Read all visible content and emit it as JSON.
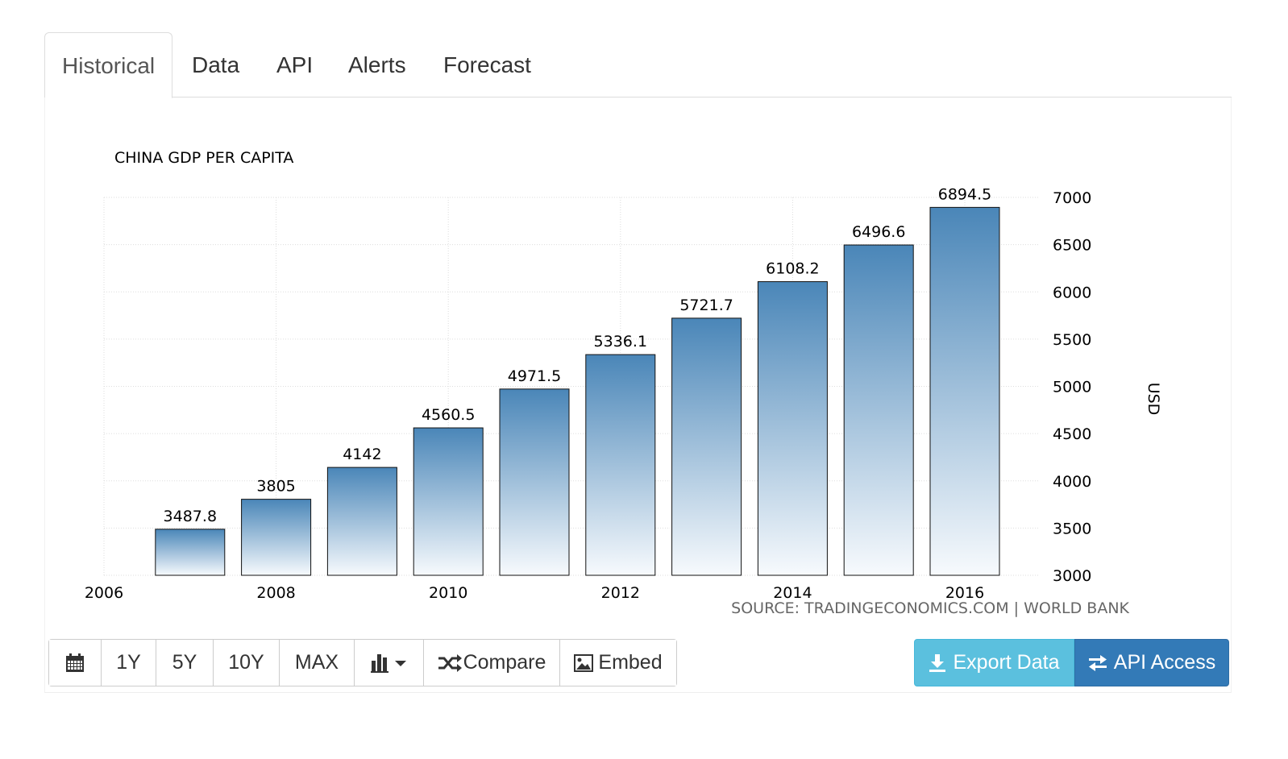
{
  "tabs": [
    {
      "label": "Historical",
      "active": true
    },
    {
      "label": "Data",
      "active": false
    },
    {
      "label": "API",
      "active": false
    },
    {
      "label": "Alerts",
      "active": false
    },
    {
      "label": "Forecast",
      "active": false
    }
  ],
  "chart_data": {
    "type": "bar",
    "title": "CHINA GDP PER CAPITA",
    "ylabel": "USD",
    "xlabel": "",
    "x": [
      2007,
      2008,
      2009,
      2010,
      2011,
      2012,
      2013,
      2014,
      2015,
      2016
    ],
    "values": [
      3487.8,
      3805,
      4142,
      4560.5,
      4971.5,
      5336.1,
      5721.7,
      6108.2,
      6496.6,
      6894.5
    ],
    "value_labels": [
      "3487.8",
      "3805",
      "4142",
      "4560.5",
      "4971.5",
      "5336.1",
      "5721.7",
      "6108.2",
      "6496.6",
      "6894.5"
    ],
    "x_ticks": [
      "2006",
      "2008",
      "2010",
      "2012",
      "2014",
      "2016"
    ],
    "x_tick_values": [
      2006,
      2008,
      2010,
      2012,
      2014,
      2016
    ],
    "y_ticks": [
      "3000",
      "3500",
      "4000",
      "4500",
      "5000",
      "5500",
      "6000",
      "6500",
      "7000"
    ],
    "y_tick_values": [
      3000,
      3500,
      4000,
      4500,
      5000,
      5500,
      6000,
      6500,
      7000
    ],
    "xlim": [
      2006,
      2017
    ],
    "ylim": [
      3000,
      7000
    ],
    "y_axis_side": "right",
    "grid": true,
    "bar_color_top": "#4a86b8",
    "bar_color_bottom": "#f7fafd"
  },
  "source": "SOURCE: TRADINGECONOMICS.COM | WORLD BANK",
  "toolbar": {
    "calendar_icon": "calendar-icon",
    "range_buttons": [
      "1Y",
      "5Y",
      "10Y",
      "MAX"
    ],
    "chart_type_icon": "bar-chart-icon",
    "compare_label": "Compare",
    "embed_label": "Embed"
  },
  "actions": {
    "export_label": "Export Data",
    "api_label": "API Access"
  }
}
